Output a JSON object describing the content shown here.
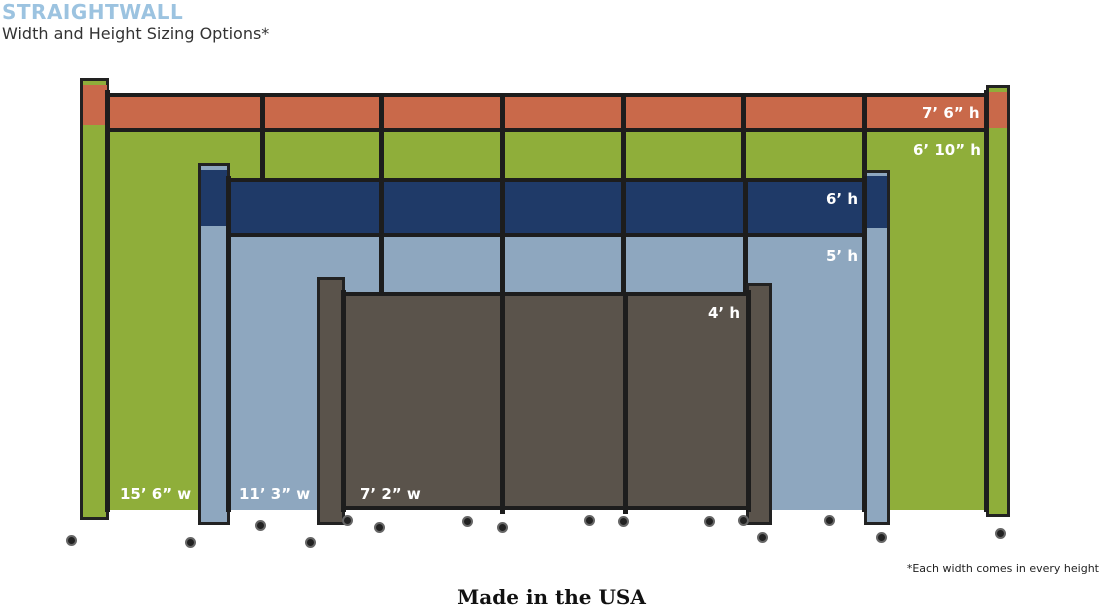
{
  "header": {
    "brand": "STRAIGHTWALL",
    "subtitle": "Width and Height Sizing Options*"
  },
  "colors": {
    "orange": "#c9694a",
    "green": "#8fae3a",
    "navy": "#1f3a68",
    "lightblue": "#8ea7bf",
    "brown": "#5a534b",
    "frame": "#1d1d1d"
  },
  "heights": {
    "h1": "7’ 6” h",
    "h2": "6’ 10” h",
    "h3": "6’ h",
    "h4": "5’ h",
    "h5": "4’ h"
  },
  "widths": {
    "w1": "15’ 6” w",
    "w2": "11’ 3” w",
    "w3": "7’ 2” w"
  },
  "footnote": "*Each width comes in every height",
  "footer": "Made in the USA"
}
